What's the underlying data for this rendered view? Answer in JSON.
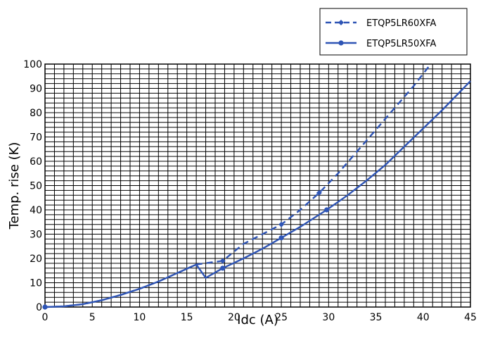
{
  "chart_data": {
    "type": "line",
    "title": "",
    "xlabel": "Idc (A)",
    "ylabel": "Temp. rise (K)",
    "xlim": [
      0,
      45
    ],
    "ylim": [
      0,
      100
    ],
    "xticks": [
      "0",
      "5",
      "10",
      "15",
      "20",
      "25",
      "30",
      "35",
      "40",
      "45"
    ],
    "yticks": [
      "0",
      "10",
      "20",
      "30",
      "40",
      "50",
      "60",
      "70",
      "80",
      "90",
      "100"
    ],
    "grid": true,
    "legend_position": "top-right",
    "colors": {
      "series": "#2f55b5",
      "grid": "#000000"
    },
    "series": [
      {
        "name": "ETQP5LR60XFA",
        "style": "dashed",
        "marker": "diamond",
        "x": [
          0,
          2,
          4,
          6,
          8,
          10,
          12,
          14,
          16,
          18.8,
          21,
          25,
          27,
          29,
          31,
          33,
          35,
          37,
          39,
          40.8
        ],
        "y": [
          0,
          0.3,
          1.2,
          2.8,
          5,
          7.5,
          10.5,
          14,
          17.5,
          19,
          26,
          34,
          40,
          47,
          55,
          64,
          73,
          82,
          91,
          100
        ],
        "markers_at": [
          0,
          18.8,
          25,
          29
        ]
      },
      {
        "name": "ETQP5LR50XFA",
        "style": "solid",
        "marker": "circle",
        "x": [
          0,
          2,
          4,
          6,
          8,
          10,
          12,
          14,
          16,
          17,
          18.8,
          21,
          23,
          25,
          27,
          29,
          29.8,
          32,
          34,
          36,
          38,
          40,
          42,
          44,
          45
        ],
        "y": [
          0,
          0.3,
          1.2,
          2.8,
          5,
          7.5,
          10.5,
          14,
          17.5,
          12,
          16,
          20,
          24,
          28.5,
          33,
          38,
          40,
          46,
          52,
          58.5,
          66,
          73.5,
          81,
          89,
          93
        ],
        "markers_at": [
          0,
          18.8,
          25,
          29.8
        ]
      }
    ]
  }
}
